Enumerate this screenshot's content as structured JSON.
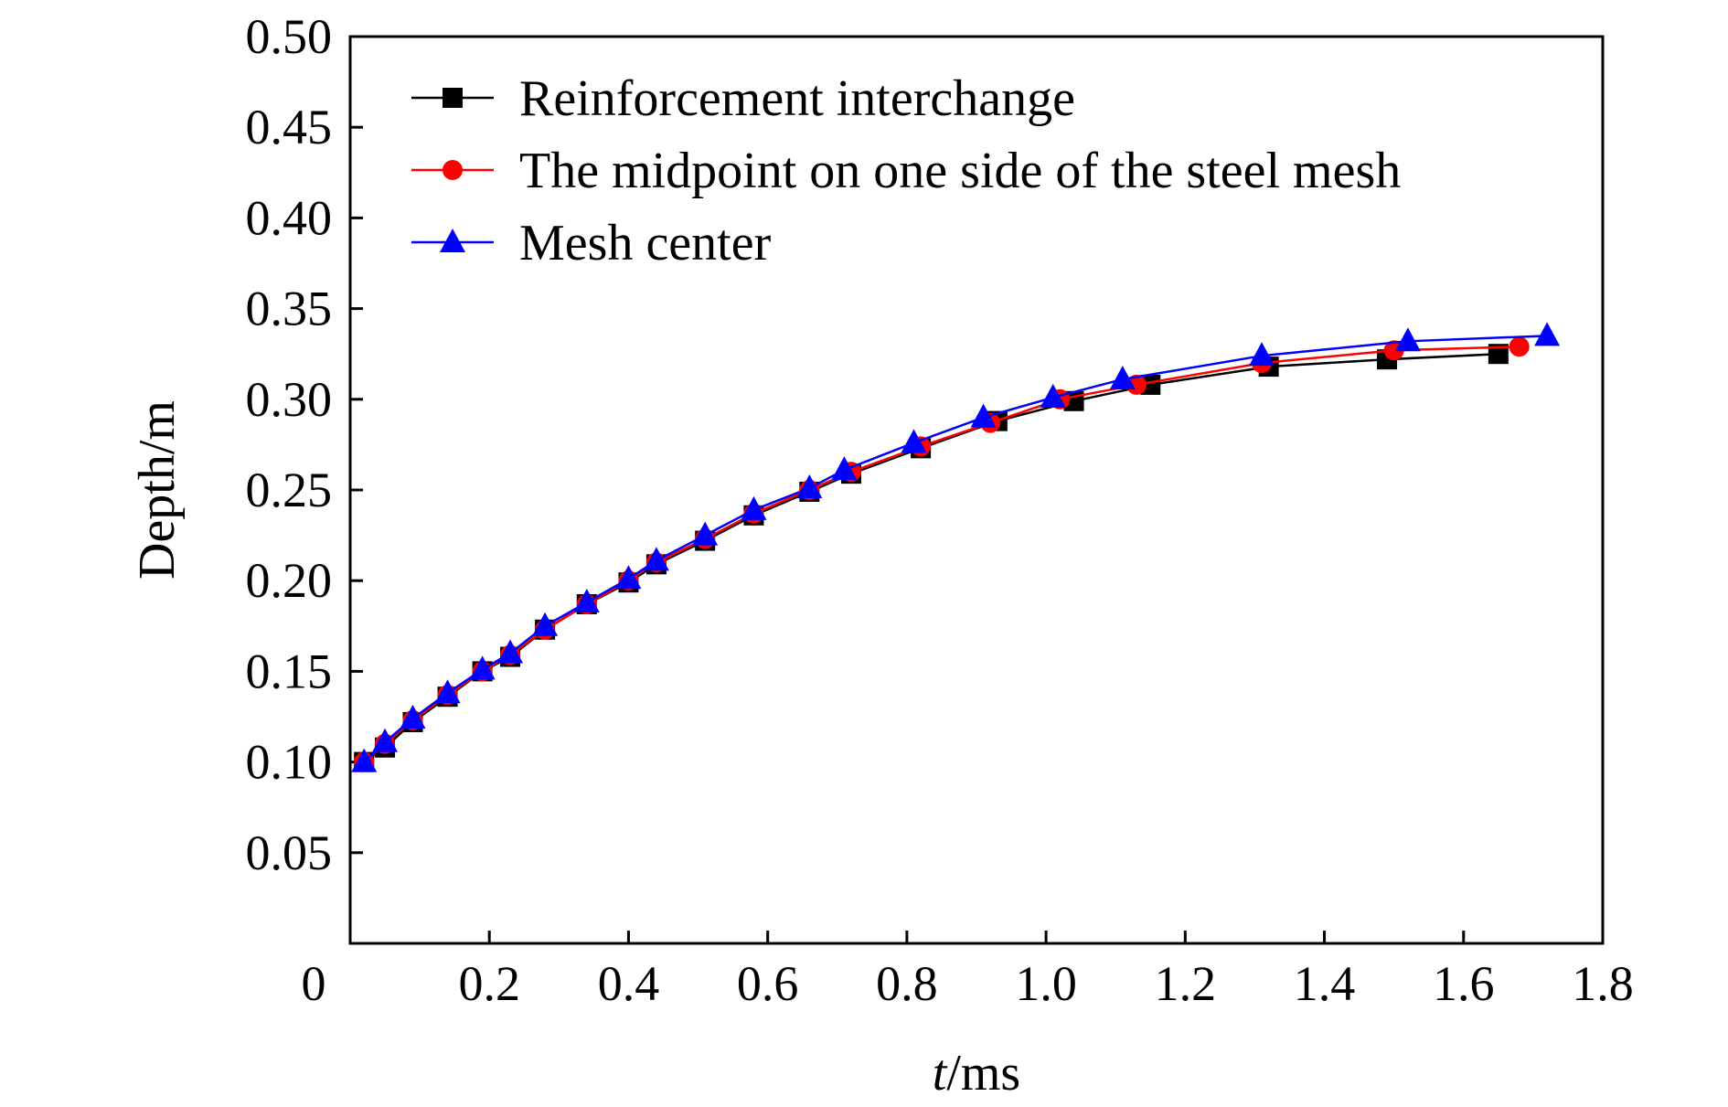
{
  "chart_data": {
    "type": "line",
    "xlabel_italic": "t",
    "xlabel_unit": "/ms",
    "ylabel": "Depth/m",
    "xlim": [
      0,
      1.8
    ],
    "ylim": [
      0,
      0.5
    ],
    "x_ticks": [
      0.2,
      0.4,
      0.6,
      0.8,
      1.0,
      1.2,
      1.4,
      1.6,
      1.8
    ],
    "x_tick_labels": [
      "0.2",
      "0.4",
      "0.6",
      "0.8",
      "1.0",
      "1.2",
      "1.4",
      "1.6",
      "1.8"
    ],
    "y_ticks": [
      0.05,
      0.1,
      0.15,
      0.2,
      0.25,
      0.3,
      0.35,
      0.4,
      0.45,
      0.5
    ],
    "y_tick_labels": [
      "0.05",
      "0.10",
      "0.15",
      "0.20",
      "0.25",
      "0.30",
      "0.35",
      "0.40",
      "0.45",
      "0.50"
    ],
    "origin_label": "0",
    "grid": false,
    "legend_position": "top-left",
    "series": [
      {
        "name": "Reinforcement interchange",
        "color": "#000000",
        "marker": "square",
        "x": [
          0.02,
          0.05,
          0.09,
          0.14,
          0.19,
          0.23,
          0.28,
          0.34,
          0.4,
          0.44,
          0.51,
          0.58,
          0.66,
          0.72,
          0.82,
          0.93,
          1.04,
          1.15,
          1.32,
          1.49,
          1.65
        ],
        "y": [
          0.1,
          0.108,
          0.122,
          0.136,
          0.15,
          0.158,
          0.173,
          0.187,
          0.199,
          0.209,
          0.222,
          0.236,
          0.249,
          0.259,
          0.273,
          0.288,
          0.299,
          0.308,
          0.318,
          0.322,
          0.325
        ]
      },
      {
        "name": "The midpoint on one side of the steel mesh",
        "color": "#ff0000",
        "marker": "circle",
        "x": [
          0.02,
          0.05,
          0.09,
          0.14,
          0.19,
          0.23,
          0.28,
          0.34,
          0.4,
          0.44,
          0.51,
          0.58,
          0.66,
          0.72,
          0.82,
          0.92,
          1.02,
          1.13,
          1.31,
          1.5,
          1.68
        ],
        "y": [
          0.1,
          0.11,
          0.123,
          0.137,
          0.15,
          0.159,
          0.173,
          0.187,
          0.2,
          0.21,
          0.223,
          0.237,
          0.25,
          0.26,
          0.274,
          0.287,
          0.3,
          0.308,
          0.32,
          0.327,
          0.329
        ]
      },
      {
        "name": "Mesh center",
        "color": "#0000ff",
        "marker": "triangle",
        "x": [
          0.02,
          0.05,
          0.09,
          0.14,
          0.19,
          0.23,
          0.28,
          0.34,
          0.4,
          0.44,
          0.51,
          0.58,
          0.66,
          0.71,
          0.81,
          0.91,
          1.01,
          1.11,
          1.31,
          1.52,
          1.72
        ],
        "y": [
          0.1,
          0.111,
          0.124,
          0.138,
          0.151,
          0.16,
          0.175,
          0.188,
          0.201,
          0.211,
          0.225,
          0.239,
          0.251,
          0.261,
          0.276,
          0.29,
          0.301,
          0.311,
          0.324,
          0.332,
          0.335
        ]
      }
    ]
  }
}
